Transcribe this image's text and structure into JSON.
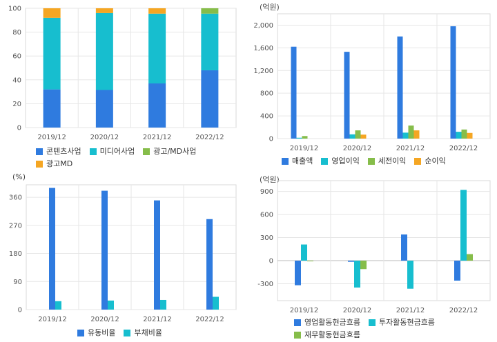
{
  "colors": {
    "blue": "#2f7bdf",
    "teal": "#17becf",
    "green": "#86bd4a",
    "orange": "#f5a623",
    "axis": "#999999",
    "grid": "#e6e6e6",
    "tick": "#555555"
  },
  "chart_data": [
    {
      "type": "bar",
      "stacked": true,
      "unit": "",
      "categories": [
        "2019/12",
        "2020/12",
        "2021/12",
        "2022/12"
      ],
      "ylim": [
        0,
        100
      ],
      "yticks": [
        0,
        20,
        40,
        60,
        80,
        100
      ],
      "series": [
        {
          "name": "콘텐츠사업",
          "values": [
            32,
            31.5,
            37,
            48
          ],
          "color": "#2f7bdf"
        },
        {
          "name": "미디어사업",
          "values": [
            60,
            64.5,
            58.5,
            47.5
          ],
          "color": "#17becf"
        },
        {
          "name": "광고/MD사업",
          "values": [
            0,
            0,
            0,
            4.5
          ],
          "color": "#86bd4a"
        },
        {
          "name": "광고MD",
          "values": [
            8,
            4,
            4.5,
            0
          ],
          "color": "#f5a623"
        }
      ],
      "legend_rows": [
        [
          0,
          1,
          2
        ],
        [
          3
        ]
      ]
    },
    {
      "type": "bar",
      "stacked": false,
      "unit": "(억원)",
      "categories": [
        "2019/12",
        "2020/12",
        "2021/12",
        "2022/12"
      ],
      "ylim": [
        0,
        2200
      ],
      "yticks": [
        0,
        400,
        800,
        1200,
        1600,
        2000
      ],
      "ytick_labels": [
        "0",
        "400",
        "800",
        "1,200",
        "1,600",
        "2,000"
      ],
      "series": [
        {
          "name": "매출액",
          "values": [
            1620,
            1530,
            1800,
            1980
          ],
          "color": "#2f7bdf"
        },
        {
          "name": "영업이익",
          "values": [
            15,
            75,
            105,
            120
          ],
          "color": "#17becf"
        },
        {
          "name": "세전이익",
          "values": [
            45,
            145,
            230,
            160
          ],
          "color": "#86bd4a"
        },
        {
          "name": "순이익",
          "values": [
            0,
            70,
            145,
            100
          ],
          "color": "#f5a623"
        }
      ],
      "legend_rows": [
        [
          0,
          1,
          2,
          3
        ]
      ]
    },
    {
      "type": "bar",
      "stacked": false,
      "unit": "(%)",
      "categories": [
        "2019/12",
        "2020/12",
        "2021/12",
        "2022/12"
      ],
      "ylim": [
        0,
        400
      ],
      "yticks": [
        0,
        90,
        180,
        270,
        360
      ],
      "series": [
        {
          "name": "유동비율",
          "values": [
            390,
            381,
            350,
            290
          ],
          "color": "#2f7bdf"
        },
        {
          "name": "부채비율",
          "values": [
            27,
            29,
            31,
            41
          ],
          "color": "#17becf"
        }
      ],
      "legend_rows": [
        [
          0,
          1
        ]
      ]
    },
    {
      "type": "bar",
      "stacked": false,
      "unit": "(억원)",
      "categories": [
        "2019/12",
        "2020/12",
        "2021/12",
        "2022/12"
      ],
      "ylim": [
        -520,
        1040
      ],
      "yticks": [
        -300,
        0,
        300,
        600,
        900
      ],
      "series": [
        {
          "name": "영업활동현금흐름",
          "values": [
            -320,
            -15,
            340,
            -260
          ],
          "color": "#2f7bdf"
        },
        {
          "name": "투자활동현금흐름",
          "values": [
            210,
            -350,
            -365,
            920
          ],
          "color": "#17becf"
        },
        {
          "name": "재무활동현금흐름",
          "values": [
            -5,
            -110,
            0,
            85
          ],
          "color": "#86bd4a"
        }
      ],
      "legend_rows": [
        [
          0,
          1
        ],
        [
          2
        ]
      ]
    }
  ]
}
